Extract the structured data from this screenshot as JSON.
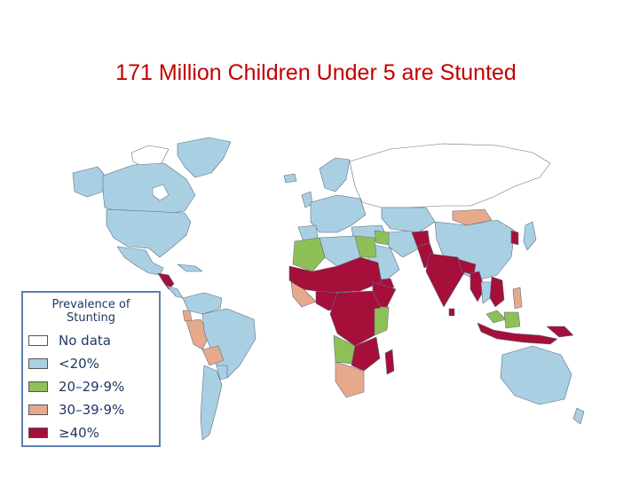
{
  "title": "171 Million Children Under 5 are Stunted",
  "legend": {
    "title_line1": "Prevalence of",
    "title_line2": "Stunting",
    "items": [
      {
        "label": "No data",
        "color": "#ffffff"
      },
      {
        "label": "<20%",
        "color": "#a9cfe3"
      },
      {
        "label": "20–29·9%",
        "color": "#8fc057"
      },
      {
        "label": "30–39·9%",
        "color": "#e6a98c"
      },
      {
        "label": "≥40%",
        "color": "#a50f3a"
      }
    ]
  },
  "map": {
    "ocean": "#ffffff",
    "border": "#5f6f7f"
  }
}
